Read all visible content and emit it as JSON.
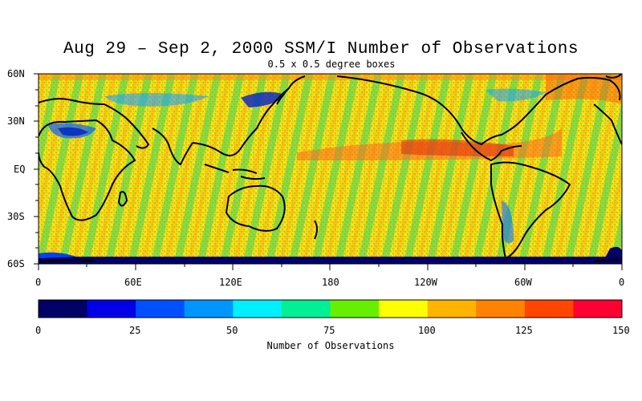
{
  "title": "Aug 29 – Sep 2, 2000 SSM/I Number of Observations",
  "subtitle": "0.5 x 0.5 degree boxes",
  "lat_labels": [
    "60N",
    "30N",
    "EQ",
    "30S",
    "60S"
  ],
  "lon_labels": [
    "0",
    "60E",
    "120E",
    "180",
    "120W",
    "60W",
    "0"
  ],
  "colorbar": {
    "title": "Number of Observations",
    "tick_labels": [
      "0",
      "25",
      "50",
      "75",
      "100",
      "125",
      "150"
    ],
    "colors": [
      "#000066",
      "#0000e6",
      "#0050ff",
      "#0096ff",
      "#00f0ff",
      "#00f096",
      "#66f000",
      "#ffff00",
      "#ffb400",
      "#ff8200",
      "#ff4600",
      "#ff0032"
    ]
  },
  "icons": {
    "map_field": "ssmi-observation-count-map"
  }
}
